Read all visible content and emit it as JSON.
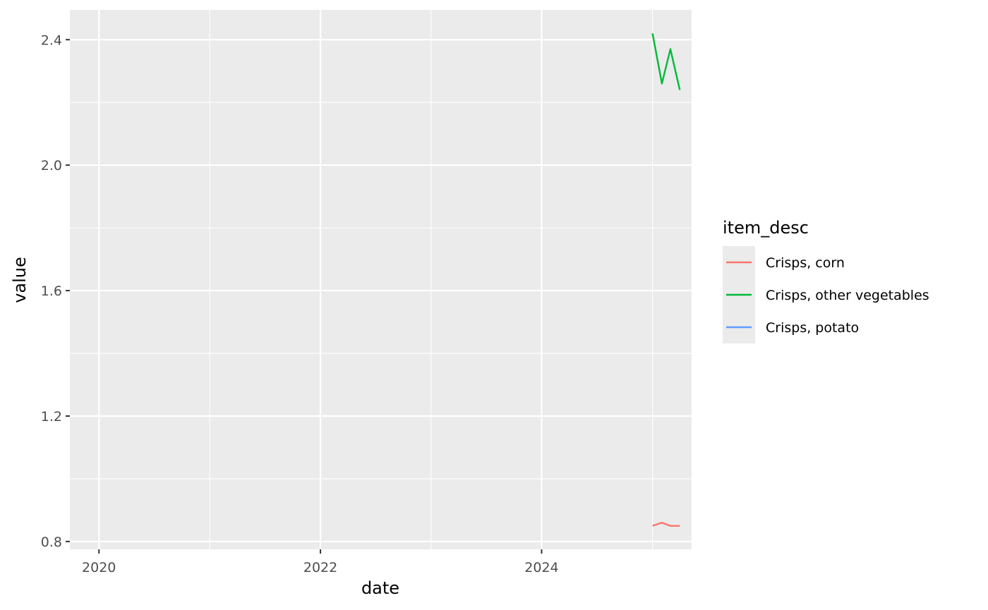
{
  "chart_data": {
    "type": "line",
    "title": "",
    "xlabel": "date",
    "ylabel": "value",
    "x_ticks": [
      "2020",
      "2022",
      "2024"
    ],
    "y_ticks": [
      "0.8",
      "1.2",
      "1.6",
      "2.0",
      "2.4"
    ],
    "xlim": [
      "2019-09-27",
      "2025-05-10"
    ],
    "ylim": [
      0.775,
      2.495
    ],
    "grid": true,
    "legend": {
      "title": "item_desc",
      "position": "right"
    },
    "series": [
      {
        "name": "Crisps, corn",
        "color": "#F8766D",
        "points": [
          {
            "x": "2025-01-01",
            "y": 0.85
          },
          {
            "x": "2025-02-01",
            "y": 0.86
          },
          {
            "x": "2025-03-01",
            "y": 0.85
          },
          {
            "x": "2025-04-01",
            "y": 0.85
          }
        ]
      },
      {
        "name": "Crisps, other vegetables",
        "color": "#00BA38",
        "points": [
          {
            "x": "2025-01-01",
            "y": 2.42
          },
          {
            "x": "2025-02-01",
            "y": 2.26
          },
          {
            "x": "2025-03-01",
            "y": 2.37
          },
          {
            "x": "2025-04-01",
            "y": 2.24
          }
        ]
      },
      {
        "name": "Crisps, potato",
        "color": "#619CFF",
        "points": []
      }
    ]
  }
}
